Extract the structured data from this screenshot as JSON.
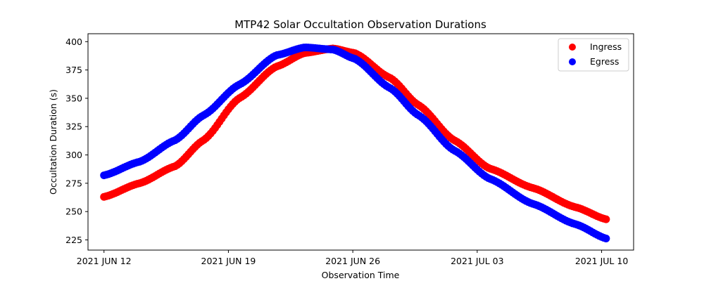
{
  "chart_data": {
    "type": "scatter",
    "title": "MTP42 Solar Occultation Observation Durations",
    "xlabel": "Observation Time",
    "ylabel": "Occultation Duration (s)",
    "x_unit": "days since 2021 JUN 12",
    "xlim": [
      -0.9,
      29.8
    ],
    "ylim": [
      216,
      407
    ],
    "xticks": [
      {
        "value": 0,
        "label": "2021 JUN 12"
      },
      {
        "value": 7,
        "label": "2021 JUN 19"
      },
      {
        "value": 14,
        "label": "2021 JUN 26"
      },
      {
        "value": 21,
        "label": "2021 JUL 03"
      },
      {
        "value": 28,
        "label": "2021 JUL 10"
      }
    ],
    "yticks": [
      225,
      250,
      275,
      300,
      325,
      350,
      375,
      400
    ],
    "grid": false,
    "legend": {
      "placement": "top-right"
    },
    "series": [
      {
        "name": "Ingress",
        "color": "#ff0000",
        "x": [
          0,
          2.0,
          4.0,
          5.6,
          7.6,
          9.7,
          11.3,
          12.9,
          14.1,
          16.1,
          17.7,
          19.7,
          21.7,
          24.1,
          26.5,
          28.3
        ],
        "y": [
          263,
          275,
          290,
          313,
          350,
          378,
          390,
          394,
          390,
          368,
          344,
          313,
          288,
          271,
          254,
          243
        ]
      },
      {
        "name": "Egress",
        "color": "#0000ff",
        "x": [
          0,
          2.0,
          4.0,
          5.6,
          7.6,
          9.7,
          11.3,
          12.9,
          14.1,
          16.1,
          17.7,
          19.7,
          21.7,
          24.1,
          26.5,
          28.3
        ],
        "y": [
          282,
          294,
          313,
          335,
          362,
          388,
          395,
          393,
          385,
          359,
          335,
          304,
          279,
          257,
          239,
          226
        ]
      }
    ]
  }
}
